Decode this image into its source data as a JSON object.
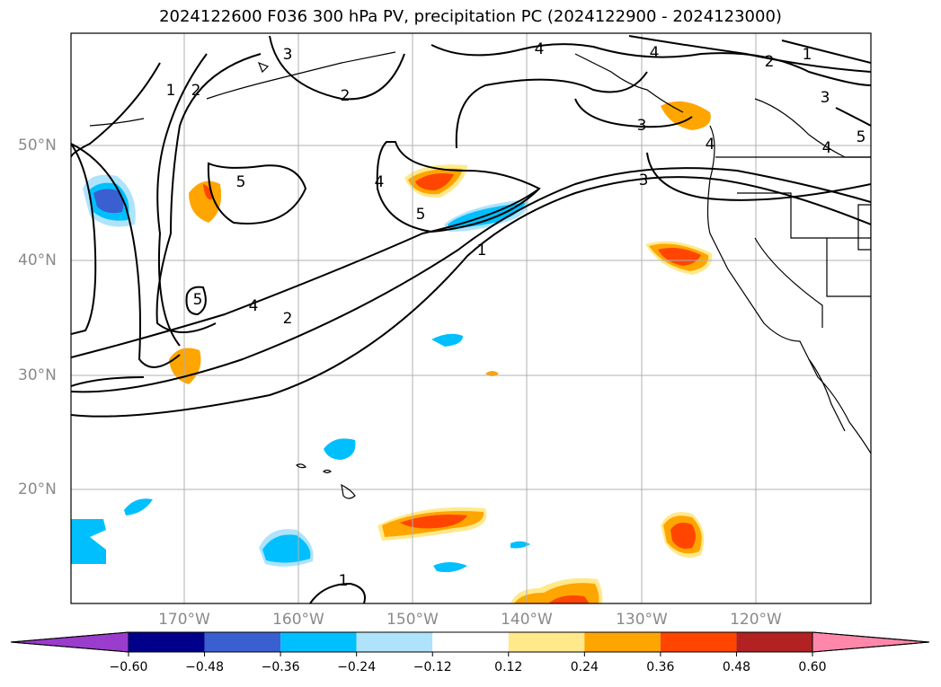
{
  "title": "2024122600 F036 300 hPa PV, precipitation PC (2024122900 - 2024123000)",
  "lat_labels": [
    "50°N",
    "40°N",
    "30°N",
    "20°N"
  ],
  "lon_labels": [
    "170°W",
    "160°W",
    "150°W",
    "140°W",
    "130°W",
    "120°W"
  ],
  "colorbar": {
    "ticks": [
      "−0.60",
      "−0.48",
      "−0.36",
      "−0.24",
      "−0.12",
      "0.12",
      "0.24",
      "0.36",
      "0.48",
      "0.60"
    ],
    "colors": [
      "#9a3ccc",
      "#00008b",
      "#3a5fd0",
      "#00bfff",
      "#aee3fb",
      "#ffffff",
      "#ffe98a",
      "#ffa500",
      "#ff4500",
      "#b22222",
      "#ff88aa"
    ]
  },
  "contour_labels": [
    "1",
    "2",
    "3",
    "4",
    "5"
  ],
  "colors": {
    "contour": "#000000",
    "grid": "#b0b0b0",
    "coast": "#000000"
  }
}
